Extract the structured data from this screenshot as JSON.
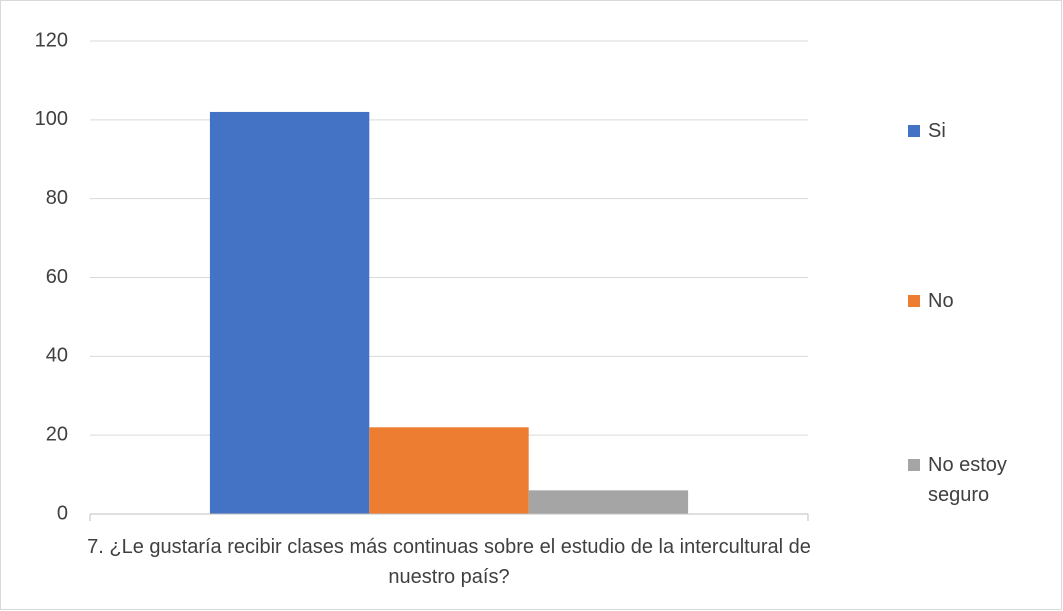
{
  "chart_data": {
    "type": "bar",
    "categories": [
      "7. ¿Le gustaría recibir clases más continuas sobre el estudio de la intercultural de nuestro país?"
    ],
    "series": [
      {
        "name": "Si",
        "color": "#4472c4",
        "values": [
          102
        ]
      },
      {
        "name": "No",
        "color": "#ed7d31",
        "values": [
          22
        ]
      },
      {
        "name": "No estoy seguro",
        "color": "#a5a5a5",
        "values": [
          6
        ]
      }
    ],
    "ylim": [
      0,
      120
    ],
    "yticks": [
      0,
      20,
      40,
      60,
      80,
      100,
      120
    ],
    "grid": true,
    "legend": "right"
  }
}
